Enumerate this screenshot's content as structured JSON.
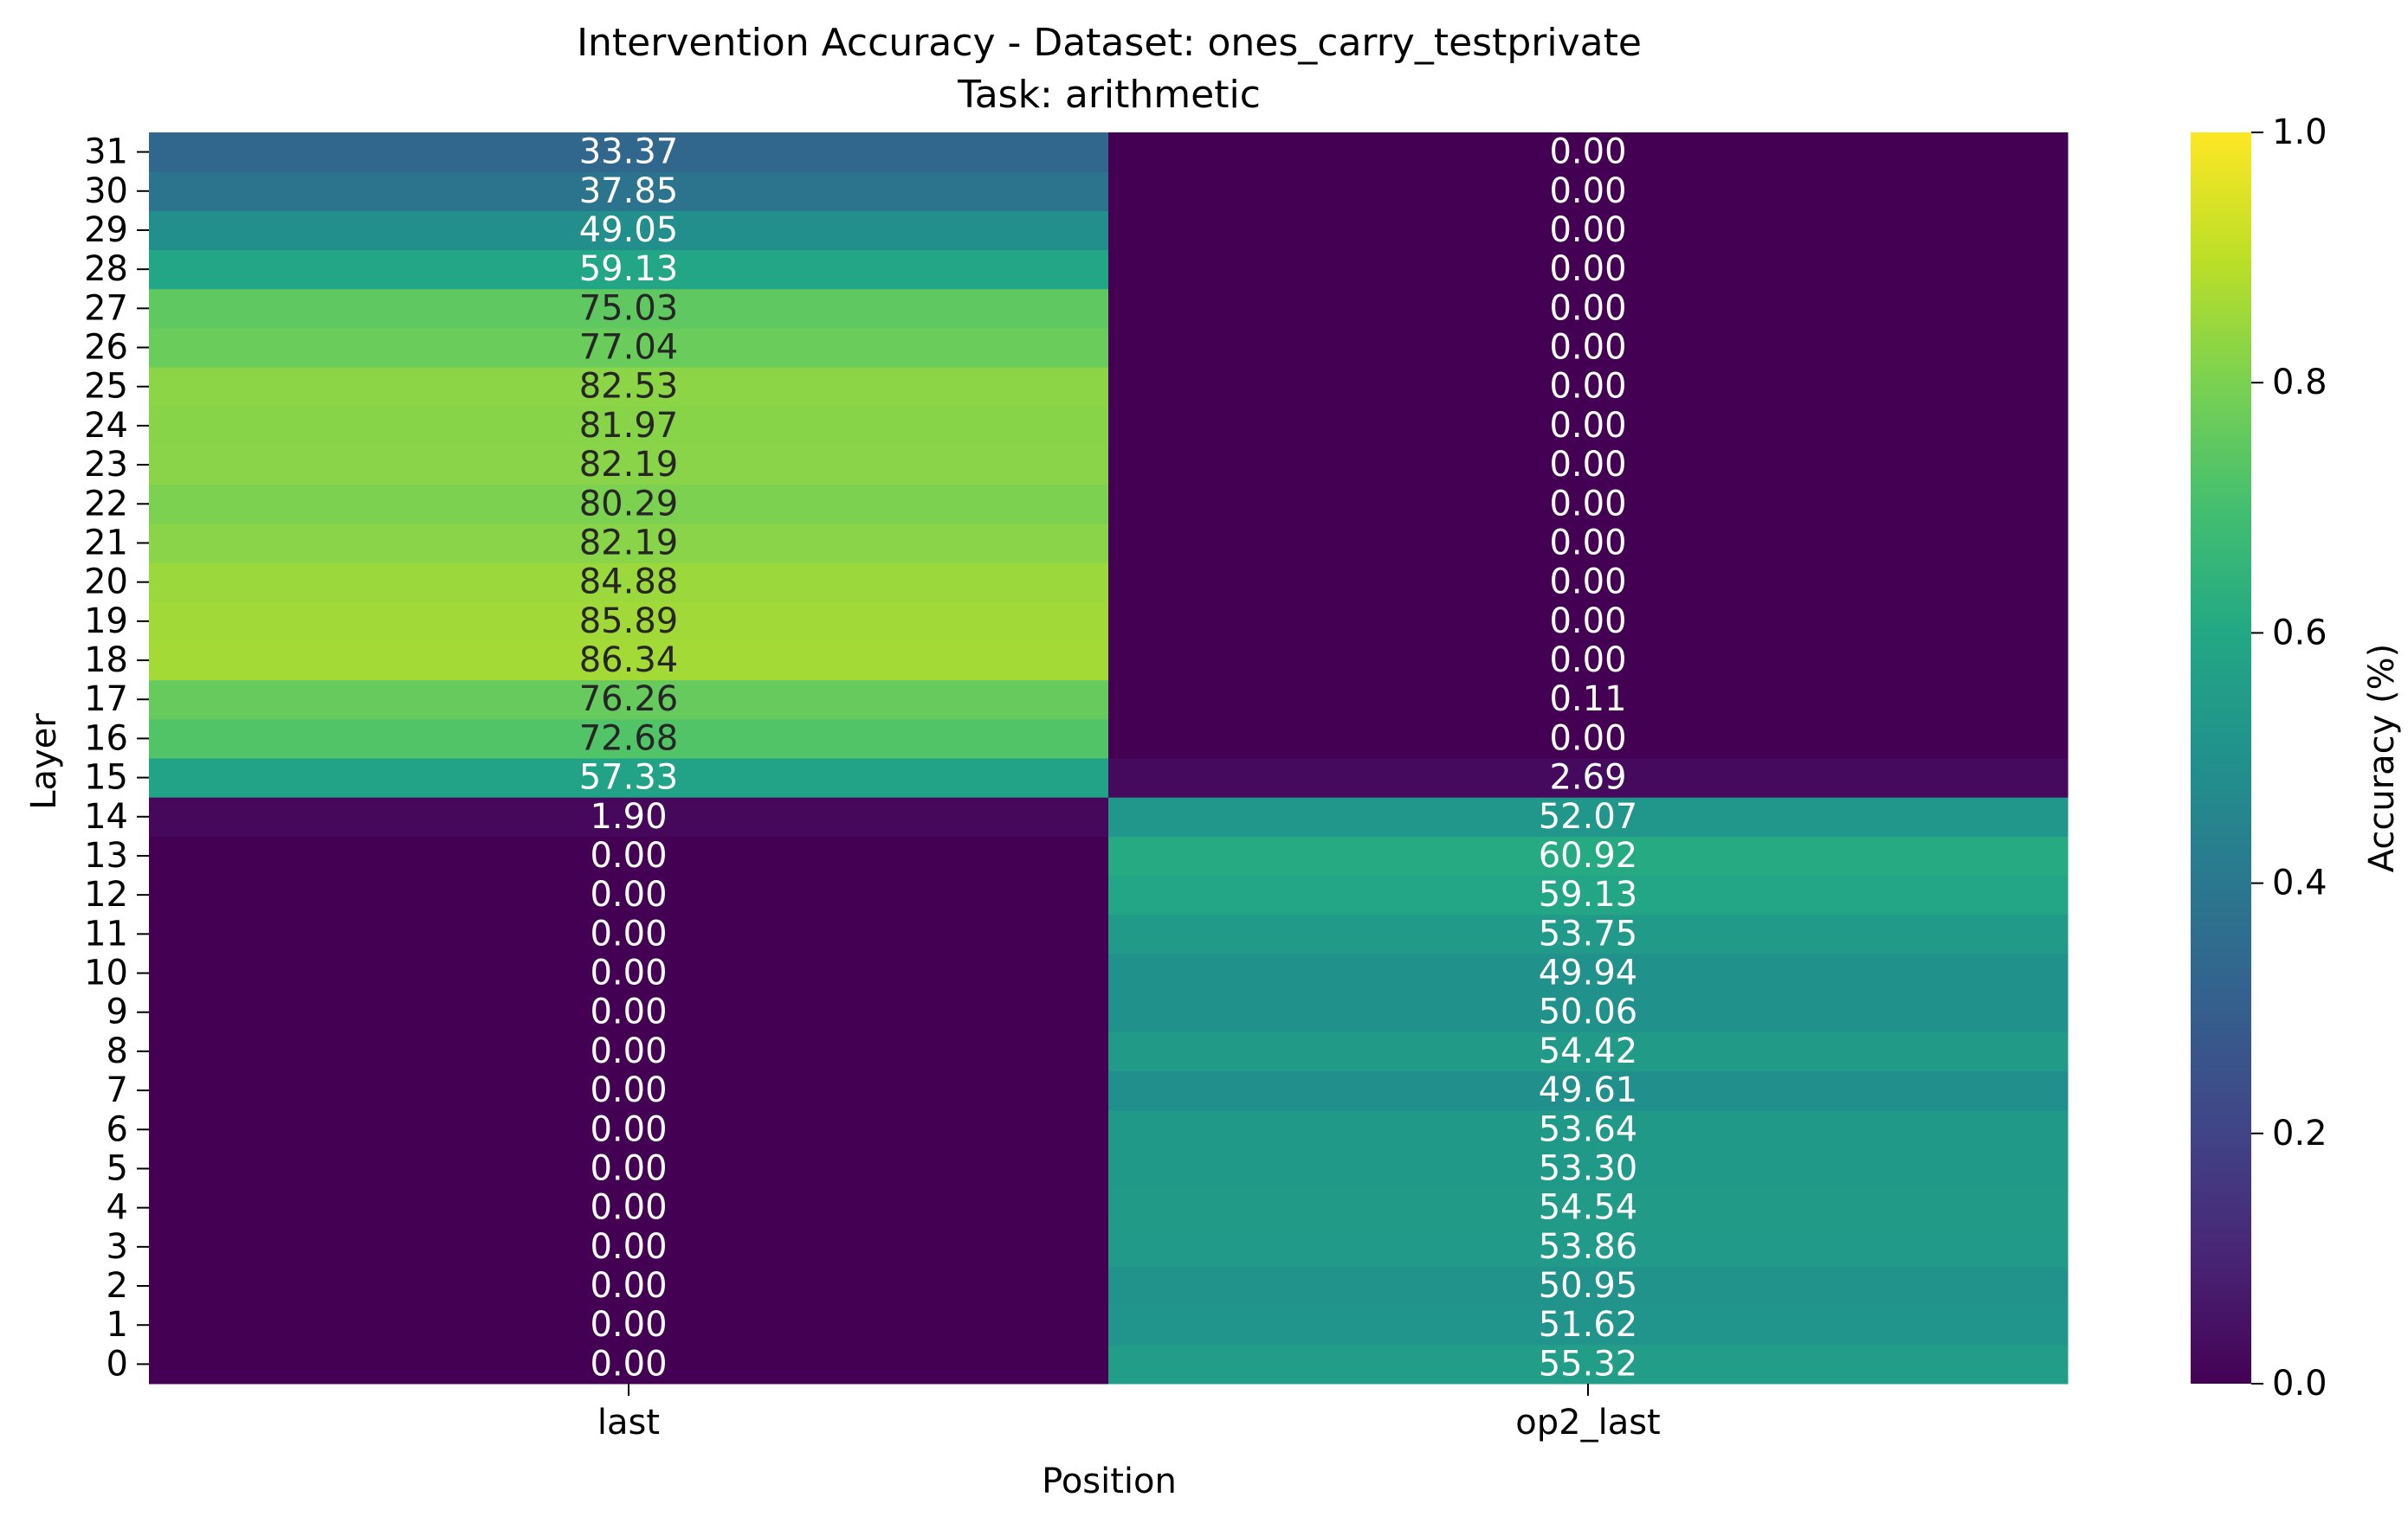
{
  "chart_data": {
    "type": "heatmap",
    "title": "Intervention Accuracy - Dataset: ones_carry_testprivate",
    "subtitle": "Task: arithmetic",
    "xlabel": "Position",
    "ylabel": "Layer",
    "x_categories": [
      "last",
      "op2_last"
    ],
    "y_categories": [
      "0",
      "1",
      "2",
      "3",
      "4",
      "5",
      "6",
      "7",
      "8",
      "9",
      "10",
      "11",
      "12",
      "13",
      "14",
      "15",
      "16",
      "17",
      "18",
      "19",
      "20",
      "21",
      "22",
      "23",
      "24",
      "25",
      "26",
      "27",
      "28",
      "29",
      "30",
      "31"
    ],
    "values": [
      [
        0.0,
        55.32
      ],
      [
        0.0,
        51.62
      ],
      [
        0.0,
        50.95
      ],
      [
        0.0,
        53.86
      ],
      [
        0.0,
        54.54
      ],
      [
        0.0,
        53.3
      ],
      [
        0.0,
        53.64
      ],
      [
        0.0,
        49.61
      ],
      [
        0.0,
        54.42
      ],
      [
        0.0,
        50.06
      ],
      [
        0.0,
        49.94
      ],
      [
        0.0,
        53.75
      ],
      [
        0.0,
        59.13
      ],
      [
        0.0,
        60.92
      ],
      [
        1.9,
        52.07
      ],
      [
        57.33,
        2.69
      ],
      [
        72.68,
        0.0
      ],
      [
        76.26,
        0.11
      ],
      [
        86.34,
        0.0
      ],
      [
        85.89,
        0.0
      ],
      [
        84.88,
        0.0
      ],
      [
        82.19,
        0.0
      ],
      [
        80.29,
        0.0
      ],
      [
        82.19,
        0.0
      ],
      [
        81.97,
        0.0
      ],
      [
        82.53,
        0.0
      ],
      [
        77.04,
        0.0
      ],
      [
        75.03,
        0.0
      ],
      [
        59.13,
        0.0
      ],
      [
        49.05,
        0.0
      ],
      [
        37.85,
        0.0
      ],
      [
        33.37,
        0.0
      ]
    ],
    "colormap": "viridis",
    "colorbar": {
      "label": "Accuracy (%)",
      "range": [
        0.0,
        1.0
      ],
      "ticks": [
        "0.0",
        "0.2",
        "0.4",
        "0.6",
        "0.8",
        "1.0"
      ]
    },
    "annotations": "cell values shown with two decimals",
    "grid": false
  }
}
